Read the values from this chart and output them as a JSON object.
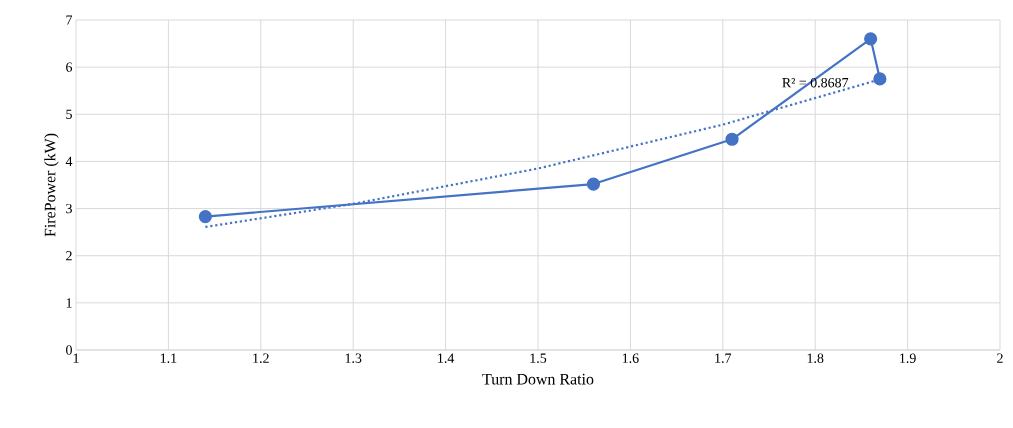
{
  "chart_data": {
    "type": "line",
    "xlabel": "Turn Down Ratio",
    "ylabel": "FirePower (kW)",
    "xlim": [
      1,
      2
    ],
    "xticks": [
      1,
      1.1,
      1.2,
      1.3,
      1.4,
      1.5,
      1.6,
      1.7,
      1.8,
      1.9,
      2
    ],
    "ylim": [
      0,
      7
    ],
    "yticks": [
      0,
      1,
      2,
      3,
      4,
      5,
      6,
      7
    ],
    "grid": true,
    "marker": "circle",
    "line_style": "solid",
    "series": [
      {
        "color": "#4472c4",
        "x": [
          1.14,
          1.56,
          1.71,
          1.86,
          1.87
        ],
        "values": [
          2.83,
          3.52,
          4.47,
          6.6,
          5.75
        ]
      },
      {
        "type": "line",
        "color": "#4472c4",
        "marker": "none",
        "line_style": "dotted",
        "x": [
          1.14,
          1.3,
          1.5,
          1.7,
          1.87
        ],
        "values": [
          2.61,
          3.1,
          3.85,
          4.78,
          5.74
        ]
      }
    ],
    "annotations": [
      {
        "text": "R² = 0.8687",
        "x": 1.8,
        "y": 5.67
      }
    ]
  }
}
